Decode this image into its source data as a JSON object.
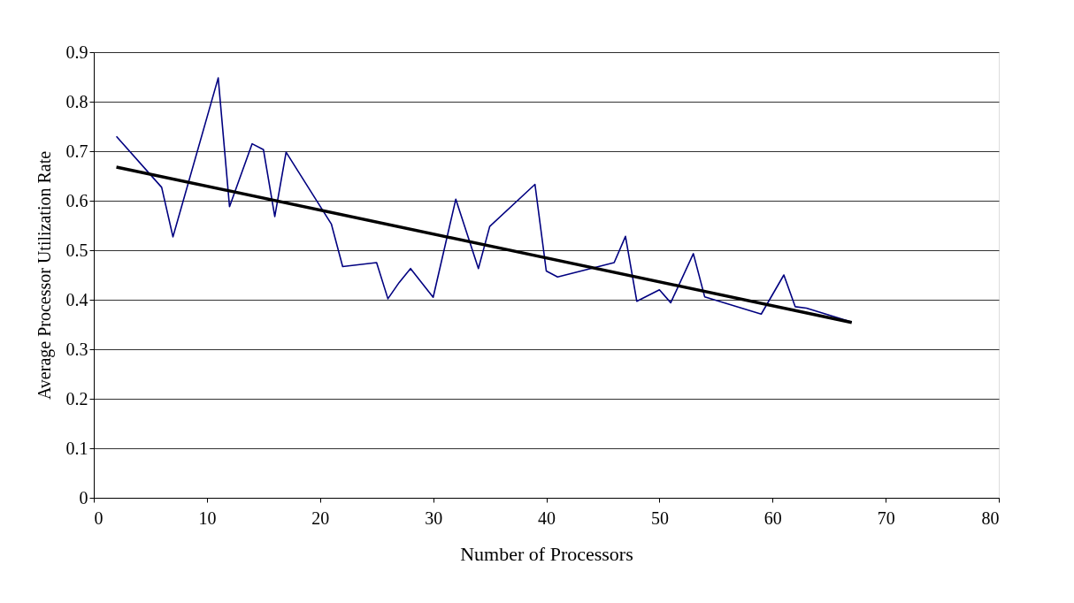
{
  "chart_data": {
    "type": "line",
    "xlabel": "Number of Processors",
    "ylabel": "Average Processor Utilization Rate",
    "xlim": [
      0,
      80
    ],
    "xticks": [
      0,
      10,
      20,
      30,
      40,
      50,
      60,
      70,
      80
    ],
    "ylim": [
      0,
      0.9
    ],
    "yticks": [
      0,
      0.1,
      0.2,
      0.3,
      0.4,
      0.5,
      0.6,
      0.7,
      0.8,
      0.9
    ],
    "grid": "y",
    "marker": "none",
    "series": [
      {
        "color": "#000080",
        "x": [
          2,
          6,
          7,
          11,
          12,
          14,
          15,
          16,
          17,
          21,
          22,
          25,
          26,
          27,
          28,
          30,
          32,
          34,
          35,
          39,
          40,
          41,
          46,
          47,
          48,
          50,
          51,
          53,
          54,
          59,
          61,
          62,
          63,
          67
        ],
        "values": [
          0.73,
          0.627,
          0.527,
          0.848,
          0.588,
          0.715,
          0.703,
          0.568,
          0.698,
          0.553,
          0.467,
          0.475,
          0.402,
          0.435,
          0.463,
          0.405,
          0.603,
          0.463,
          0.548,
          0.633,
          0.458,
          0.446,
          0.475,
          0.528,
          0.397,
          0.42,
          0.394,
          0.493,
          0.406,
          0.371,
          0.45,
          0.386,
          0.383,
          0.355
        ]
      },
      {
        "color": "#000000",
        "x": [
          2,
          67
        ],
        "values": [
          0.668,
          0.354
        ]
      }
    ]
  }
}
